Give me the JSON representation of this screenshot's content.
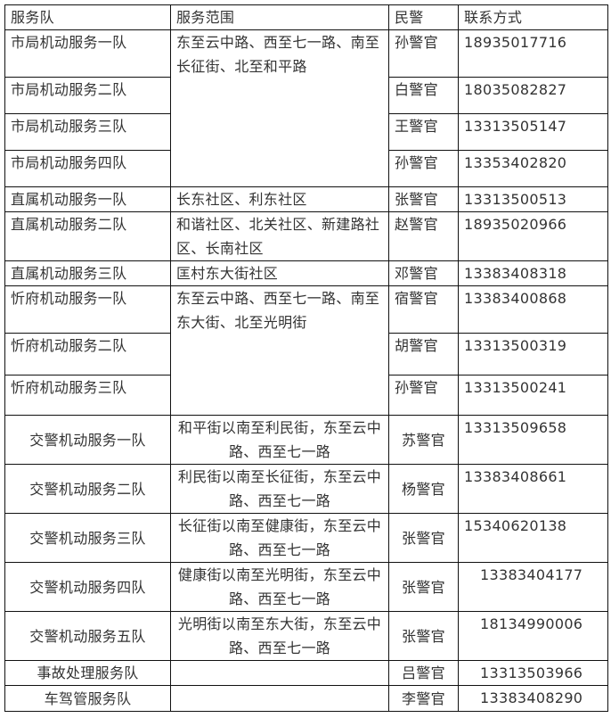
{
  "headers": [
    "服务队",
    "服务范围",
    "民警",
    "联系方式"
  ],
  "rows": [
    {
      "team": "市局机动服务一队",
      "scope": "东至云中路、西至七一路、南至长征街、北至和平路",
      "scope_span": 4,
      "officer": "孙警官",
      "phone": "18935017716"
    },
    {
      "team": "市局机动服务二队",
      "officer": "白警官",
      "phone": "18035082827"
    },
    {
      "team": "市局机动服务三队",
      "officer": "王警官",
      "phone": "13313505147"
    },
    {
      "team": "市局机动服务四队",
      "officer": "孙警官",
      "phone": "13353402820"
    },
    {
      "team": "直属机动服务一队",
      "scope": "长东社区、利东社区",
      "scope_span": 1,
      "officer": "张警官",
      "phone": "13313500513"
    },
    {
      "team": "直属机动服务二队",
      "scope": "和谐社区、北关社区、新建路社区、长南社区",
      "scope_span": 1,
      "officer": "赵警官",
      "phone": "18935020966"
    },
    {
      "team": "直属机动服务三队",
      "scope": "匡村东大街社区",
      "scope_span": 1,
      "officer": "邓警官",
      "phone": "13383408318"
    },
    {
      "team": "忻府机动服务一队",
      "scope": "东至云中路、西至七一路、南至东大街、北至光明街",
      "scope_span": 3,
      "officer": "宿警官",
      "phone": "13383400868"
    },
    {
      "team": "忻府机动服务二队",
      "officer": "胡警官",
      "phone": "13313500319"
    },
    {
      "team": "忻府机动服务三队",
      "officer": "孙警官",
      "phone": "13313500241"
    },
    {
      "team": "交警机动服务一队",
      "scope": "和平街以南至利民街，东至云中路、西至七一路",
      "scope_span": 1,
      "officer": "苏警官",
      "phone": "13313509658",
      "centered": true
    },
    {
      "team": "交警机动服务二队",
      "scope": "利民街以南至长征街，东至云中路、西至七一路",
      "scope_span": 1,
      "officer": "杨警官",
      "phone": "13383408661",
      "centered": true
    },
    {
      "team": "交警机动服务三队",
      "scope": "长征街以南至健康街，东至云中路、西至七一路",
      "scope_span": 1,
      "officer": "张警官",
      "phone": "15340620138",
      "centered": true
    },
    {
      "team": "交警机动服务四队",
      "scope": "健康街以南至光明街，东至云中路、西至七一路",
      "scope_span": 1,
      "officer": "张警官",
      "phone": "13383404177",
      "centered": true,
      "indent": true
    },
    {
      "team": "交警机动服务五队",
      "scope": "光明街以南至东大街，东至云中路、西至七一路",
      "scope_span": 1,
      "officer": "张警官",
      "phone": "18134990006",
      "centered": true,
      "indent": true
    },
    {
      "team": "事故处理服务队",
      "scope": "",
      "scope_span": 1,
      "officer": "吕警官",
      "phone": "13313503966",
      "centered": true,
      "indent": true
    },
    {
      "team": "车驾管服务队",
      "scope": "",
      "scope_span": 1,
      "officer": "李警官",
      "phone": "13383408290",
      "centered": true,
      "indent": true
    }
  ]
}
